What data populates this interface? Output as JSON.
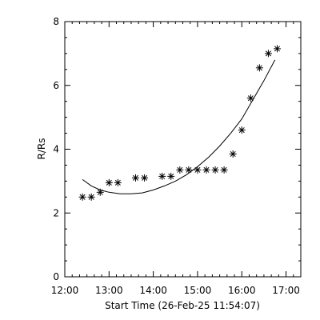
{
  "chart_data": {
    "type": "scatter",
    "xlabel": "Start Time (26-Feb-25 11:54:07)",
    "ylabel": "R/Rs",
    "x_unit": "time_hh:mm",
    "xlim": [
      "12:00",
      "17:20"
    ],
    "ylim": [
      0,
      8
    ],
    "x_ticks": [
      "12:00",
      "13:00",
      "14:00",
      "15:00",
      "16:00",
      "17:00"
    ],
    "y_ticks": [
      "0",
      "2",
      "4",
      "6",
      "8"
    ],
    "grid": false,
    "marker": "asterisk",
    "points": {
      "x": [
        "12:24",
        "12:36",
        "12:48",
        "13:00",
        "13:12",
        "13:36",
        "13:48",
        "14:12",
        "14:24",
        "14:36",
        "14:48",
        "15:00",
        "15:12",
        "15:24",
        "15:36",
        "15:48",
        "16:00",
        "16:12",
        "16:24",
        "16:36",
        "16:48"
      ],
      "y": [
        2.5,
        2.5,
        2.65,
        2.95,
        2.95,
        3.1,
        3.1,
        3.15,
        3.15,
        3.35,
        3.35,
        3.35,
        3.35,
        3.35,
        3.35,
        3.85,
        4.6,
        5.6,
        6.55,
        7.0,
        7.15
      ]
    },
    "fit_curve": {
      "x": [
        "12:24",
        "12:36",
        "12:48",
        "13:00",
        "13:15",
        "13:30",
        "13:45",
        "14:00",
        "14:15",
        "14:30",
        "14:45",
        "15:00",
        "15:15",
        "15:30",
        "15:45",
        "16:00",
        "16:15",
        "16:30",
        "16:45"
      ],
      "y": [
        3.05,
        2.85,
        2.72,
        2.65,
        2.6,
        2.6,
        2.63,
        2.72,
        2.85,
        3.0,
        3.2,
        3.45,
        3.75,
        4.1,
        4.5,
        4.95,
        5.55,
        6.15,
        6.8
      ]
    }
  }
}
